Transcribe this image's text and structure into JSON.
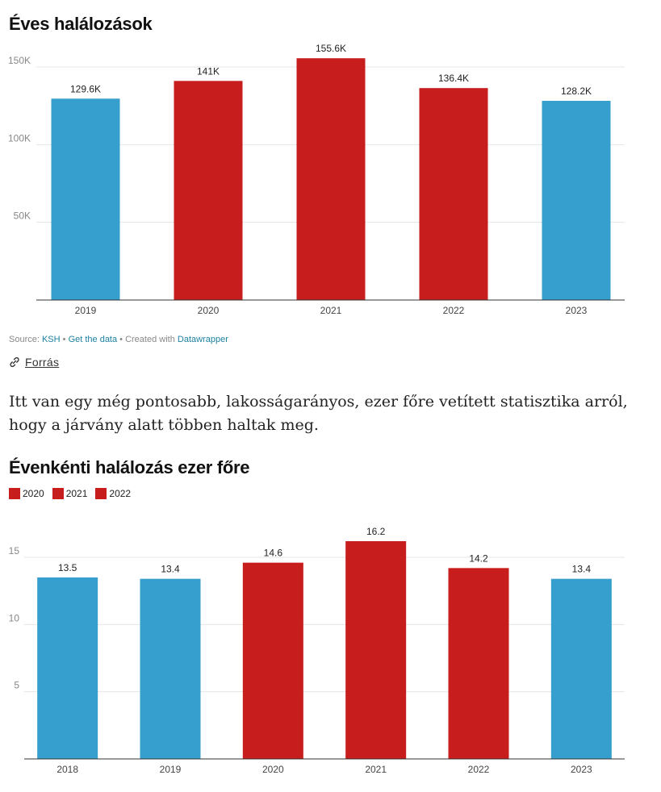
{
  "chart1": {
    "title": "Éves halálozások",
    "footer": {
      "source_prefix": "Source: ",
      "source_name": "KSH",
      "sep1": " • ",
      "get_data": "Get the data",
      "sep2": " • Created with ",
      "created_with": "Datawrapper"
    }
  },
  "source_link": {
    "label": "Forrás",
    "icon": "link-icon"
  },
  "paragraph": "Itt van egy még pontosabb, lakosságarányos, ezer főre vetített statisztika arról, hogy a járvány alatt többen haltak meg.",
  "chart2": {
    "title": "Évenkénti halálozás ezer főre",
    "legend": [
      {
        "label": "2020",
        "color": "#c71e1d"
      },
      {
        "label": "2021",
        "color": "#c71e1d"
      },
      {
        "label": "2022",
        "color": "#c71e1d"
      }
    ]
  },
  "chart_data": [
    {
      "type": "bar",
      "title": "Éves halálozások",
      "categories": [
        "2019",
        "2020",
        "2021",
        "2022",
        "2023"
      ],
      "values": [
        129600,
        141000,
        155600,
        136400,
        128200
      ],
      "value_labels": [
        "129.6K",
        "141K",
        "155.6K",
        "136.4K",
        "128.2K"
      ],
      "ylim": [
        0,
        150000
      ],
      "yticks": [
        50000,
        100000,
        150000
      ],
      "ytick_labels": [
        "50K",
        "100K",
        "150K"
      ],
      "colors": [
        "#379fce",
        "#c71e1d",
        "#c71e1d",
        "#c71e1d",
        "#379fce"
      ],
      "grid": true,
      "xlabel": "",
      "ylabel": ""
    },
    {
      "type": "bar",
      "title": "Évenkénti halálozás ezer főre",
      "categories": [
        "2018",
        "2019",
        "2020",
        "2021",
        "2022",
        "2023"
      ],
      "values": [
        13.5,
        13.4,
        14.6,
        16.2,
        14.2,
        13.4
      ],
      "value_labels": [
        "13.5",
        "13.4",
        "14.6",
        "16.2",
        "14.2",
        "13.4"
      ],
      "ylim": [
        0,
        15
      ],
      "yticks": [
        5,
        10,
        15
      ],
      "ytick_labels": [
        "5",
        "10",
        "15"
      ],
      "colors": [
        "#379fce",
        "#379fce",
        "#c71e1d",
        "#c71e1d",
        "#c71e1d",
        "#379fce"
      ],
      "legend": [
        "2020",
        "2021",
        "2022"
      ],
      "legend_placement": "top-left",
      "grid": true,
      "xlabel": "",
      "ylabel": ""
    }
  ]
}
